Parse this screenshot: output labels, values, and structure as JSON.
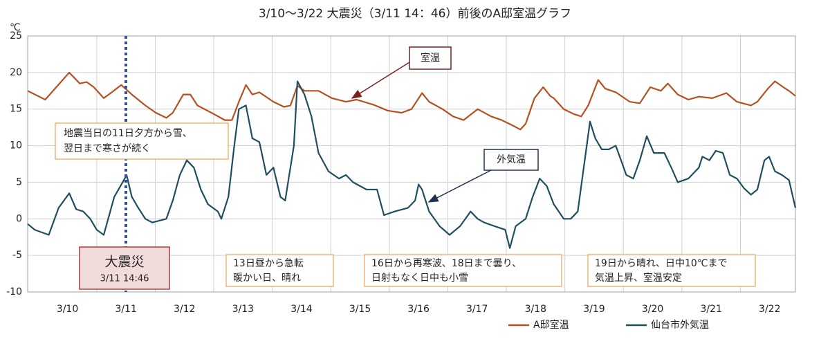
{
  "chart_data": {
    "type": "line",
    "title": "3/10～3/22 大震災（3/11 14：46）前後のA邸室温グラフ",
    "y_unit": "℃",
    "xlim": [
      9.82,
      22.94
    ],
    "xticks": [
      {
        "value": 10.5,
        "label": "3/10"
      },
      {
        "value": 11.5,
        "label": "3/11"
      },
      {
        "value": 12.5,
        "label": "3/12"
      },
      {
        "value": 13.5,
        "label": "3/13"
      },
      {
        "value": 14.5,
        "label": "3/14"
      },
      {
        "value": 15.5,
        "label": "3/15"
      },
      {
        "value": 16.5,
        "label": "3/16"
      },
      {
        "value": 17.5,
        "label": "3/17"
      },
      {
        "value": 18.5,
        "label": "3/18"
      },
      {
        "value": 19.5,
        "label": "3/19"
      },
      {
        "value": 20.5,
        "label": "3/20"
      },
      {
        "value": 21.5,
        "label": "3/21"
      },
      {
        "value": 22.5,
        "label": "3/22"
      }
    ],
    "ylim": [
      -10,
      25
    ],
    "yticks": [
      25,
      20,
      15,
      10,
      5,
      0,
      -5,
      -10
    ],
    "grid": true,
    "legend": "bottom-right",
    "series": [
      {
        "name": "A邸室温",
        "color": "#b5501f",
        "x": [
          9.82,
          10.12,
          10.53,
          10.71,
          10.83,
          10.95,
          11.12,
          11.24,
          11.42,
          11.6,
          11.83,
          12.01,
          12.19,
          12.3,
          12.48,
          12.6,
          12.72,
          12.96,
          13.19,
          13.31,
          13.43,
          13.55,
          13.66,
          13.78,
          14.02,
          14.2,
          14.31,
          14.43,
          14.55,
          14.79,
          15.02,
          15.26,
          15.44,
          15.73,
          15.97,
          16.21,
          16.38,
          16.56,
          16.68,
          16.91,
          17.09,
          17.27,
          17.51,
          17.74,
          17.92,
          18.1,
          18.24,
          18.33,
          18.48,
          18.63,
          18.75,
          18.81,
          18.98,
          19.16,
          19.28,
          19.4,
          19.57,
          19.69,
          19.87,
          20.11,
          20.28,
          20.46,
          20.64,
          20.76,
          20.93,
          21.11,
          21.29,
          21.52,
          21.76,
          21.94,
          22.18,
          22.29,
          22.47,
          22.59,
          22.77,
          22.83,
          22.94
        ],
        "values": [
          17.5,
          16.3,
          20,
          18.5,
          18.7,
          18,
          16.5,
          17.2,
          18.3,
          17,
          15.5,
          14.5,
          13.8,
          14.5,
          17,
          17,
          15.5,
          14.5,
          13.5,
          13.5,
          16,
          18.3,
          17,
          17.3,
          16,
          15.3,
          15.5,
          18.2,
          17.5,
          17.5,
          16.5,
          16,
          16.3,
          15.6,
          14.8,
          14.5,
          15,
          17.2,
          16,
          15,
          14,
          13.5,
          15,
          14,
          13.5,
          12.8,
          12.2,
          13,
          16.5,
          18,
          16.8,
          16.5,
          15,
          14.3,
          14,
          15.5,
          19,
          17.8,
          17.3,
          16,
          15.8,
          18,
          17.5,
          18.5,
          17,
          16.3,
          16.7,
          16.5,
          17.2,
          16,
          15.5,
          16,
          17.8,
          18.8,
          17.8,
          17.5,
          16.8
        ]
      },
      {
        "name": "仙台市外気温",
        "color": "#1f4e5f",
        "x": [
          9.82,
          9.94,
          10.18,
          10.35,
          10.53,
          10.65,
          10.77,
          10.89,
          11.0,
          11.12,
          11.3,
          11.48,
          11.51,
          11.6,
          11.71,
          11.83,
          11.95,
          12.19,
          12.3,
          12.42,
          12.54,
          12.66,
          12.78,
          12.9,
          13.07,
          13.13,
          13.25,
          13.35,
          13.43,
          13.55,
          13.66,
          13.78,
          13.9,
          14.02,
          14.14,
          14.22,
          14.37,
          14.43,
          14.55,
          14.67,
          14.79,
          14.96,
          15.14,
          15.26,
          15.38,
          15.61,
          15.79,
          15.91,
          16.09,
          16.32,
          16.44,
          16.5,
          16.56,
          16.68,
          16.86,
          17.03,
          17.21,
          17.39,
          17.51,
          17.62,
          17.8,
          17.98,
          18.06,
          18.16,
          18.33,
          18.45,
          18.57,
          18.69,
          18.81,
          18.98,
          19.1,
          19.22,
          19.34,
          19.43,
          19.52,
          19.63,
          19.75,
          19.87,
          20.05,
          20.17,
          20.28,
          20.4,
          20.52,
          20.7,
          20.82,
          20.93,
          21.11,
          21.29,
          21.35,
          21.47,
          21.58,
          21.7,
          21.82,
          21.94,
          22.06,
          22.18,
          22.29,
          22.41,
          22.49,
          22.59,
          22.71,
          22.83,
          22.94
        ],
        "values": [
          -0.7,
          -1.5,
          -2.2,
          1.5,
          3.5,
          1.3,
          1,
          0,
          -1.5,
          -2.2,
          3,
          5.5,
          6,
          3,
          1.5,
          0,
          -0.5,
          0,
          2.5,
          6,
          8,
          7,
          4,
          2,
          1,
          0,
          3,
          10,
          15,
          15.5,
          11,
          10.5,
          6,
          7,
          3,
          2.5,
          10,
          18.8,
          17,
          14,
          9,
          6.5,
          5.5,
          6,
          5,
          4,
          4,
          0.5,
          1,
          1.5,
          2.5,
          4.7,
          4,
          1,
          -1,
          -2.2,
          -1,
          1,
          0,
          -0.5,
          -1,
          -1.5,
          -4,
          -1,
          0,
          3,
          5.5,
          4.5,
          2,
          0,
          0,
          1,
          8,
          13.3,
          11,
          9.5,
          9.5,
          10,
          6,
          5.5,
          8,
          11.3,
          9,
          9,
          7,
          5,
          5.5,
          7,
          8.5,
          8,
          9.3,
          9,
          6,
          5.5,
          4.2,
          3.3,
          4,
          8,
          8.5,
          6.5,
          6,
          5.3,
          1.5
        ]
      }
    ],
    "callouts": [
      "室温",
      "外気温"
    ],
    "event": {
      "title": "大震災",
      "time": "3/11 14:46"
    },
    "notes": [
      {
        "lines": [
          "地震当日の11日夕方から雪、",
          "翌日まで寒さが続く"
        ]
      },
      {
        "lines": [
          "13日昼から急転",
          "暖かい日、晴れ"
        ]
      },
      {
        "lines": [
          "16日から再寒波、18日まで曇り、",
          "日射もなく日中も小雪"
        ]
      },
      {
        "lines": [
          "19日から晴れ、日中10℃まで",
          "気温上昇、室温安定"
        ]
      }
    ]
  }
}
